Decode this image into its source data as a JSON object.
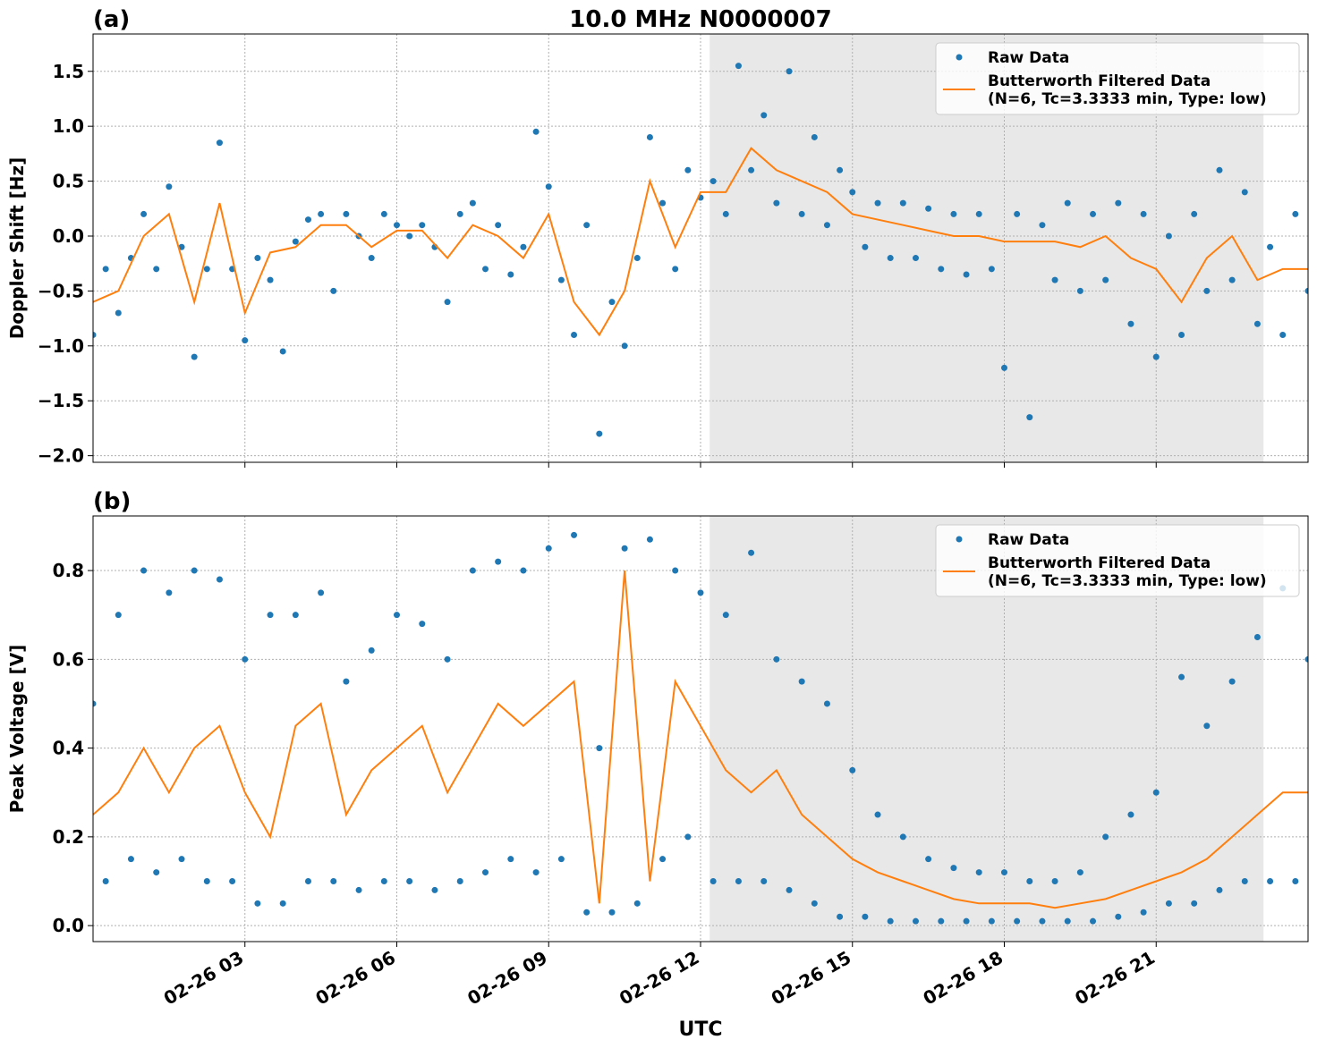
{
  "chart_data": [
    {
      "type": "line",
      "title": "10.0 MHz N0000007",
      "panel_label": "(a)",
      "y_label": "Doppler Shift [Hz]",
      "xlim": [
        0,
        24
      ],
      "xticks": [
        3,
        6,
        9,
        12,
        15,
        18,
        21
      ],
      "ylim": [
        -2.06,
        1.84
      ],
      "yticks": [
        -2.0,
        -1.5,
        -1.0,
        -0.5,
        0.0,
        0.5,
        1.0,
        1.5
      ],
      "ytick_labels": [
        "−2.0",
        "−1.5",
        "−1.0",
        "−0.5",
        "0.0",
        "0.5",
        "1.0",
        "1.5"
      ],
      "grid": true,
      "legend": "upper right",
      "shade": [
        12.18,
        23.12
      ],
      "shade_color": "#e8e8e8",
      "series": [
        {
          "name": "Raw Data",
          "color": "#1f77b4",
          "style": "markers",
          "x": [
            0,
            0.25,
            0.5,
            0.75,
            1,
            1.25,
            1.5,
            1.75,
            2,
            2.25,
            2.5,
            2.75,
            3,
            3.25,
            3.5,
            3.75,
            4,
            4.25,
            4.5,
            4.75,
            5,
            5.25,
            5.5,
            5.75,
            6,
            6.25,
            6.5,
            6.75,
            7,
            7.25,
            7.5,
            7.75,
            8,
            8.25,
            8.5,
            8.75,
            9,
            9.25,
            9.5,
            9.75,
            10,
            10.25,
            10.5,
            10.75,
            11,
            11.25,
            11.5,
            11.75,
            12,
            12.25,
            12.5,
            12.75,
            13,
            13.25,
            13.5,
            13.75,
            14,
            14.25,
            14.5,
            14.75,
            15,
            15.25,
            15.5,
            15.75,
            16,
            16.25,
            16.5,
            16.75,
            17,
            17.25,
            17.5,
            17.75,
            18,
            18.25,
            18.5,
            18.75,
            19,
            19.25,
            19.5,
            19.75,
            20,
            20.25,
            20.5,
            20.75,
            21,
            21.25,
            21.5,
            21.75,
            22,
            22.25,
            22.5,
            22.75,
            23,
            23.25,
            23.5,
            23.75,
            24
          ],
          "values": [
            -0.9,
            -0.3,
            -0.7,
            -0.2,
            0.2,
            -0.3,
            0.45,
            -0.1,
            -1.1,
            -0.3,
            0.85,
            -0.3,
            -0.95,
            -0.2,
            -0.4,
            -1.05,
            -0.05,
            0.15,
            0.2,
            -0.5,
            0.2,
            0.0,
            -0.2,
            0.2,
            0.1,
            0.0,
            0.1,
            -0.1,
            -0.6,
            0.2,
            0.3,
            -0.3,
            0.1,
            -0.35,
            -0.1,
            0.95,
            0.45,
            -0.4,
            -0.9,
            0.1,
            -1.8,
            -0.6,
            -1.0,
            -0.2,
            0.9,
            0.3,
            -0.3,
            0.6,
            0.35,
            0.5,
            0.2,
            1.55,
            0.6,
            1.1,
            0.3,
            1.5,
            0.2,
            0.9,
            0.1,
            0.6,
            0.4,
            -0.1,
            0.3,
            -0.2,
            0.3,
            -0.2,
            0.25,
            -0.3,
            0.2,
            -0.35,
            0.2,
            -0.3,
            -1.2,
            0.2,
            -1.65,
            0.1,
            -0.4,
            0.3,
            -0.5,
            0.2,
            -0.4,
            0.3,
            -0.8,
            0.2,
            -1.1,
            0.0,
            -0.9,
            0.2,
            -0.5,
            0.6,
            -0.4,
            0.4,
            -0.8,
            -0.1,
            -0.9,
            0.2,
            -0.5
          ]
        },
        {
          "name": "Butterworth Filtered Data\n(N=6, Tc=3.3333 min, Type: low)",
          "color": "#ff7f0e",
          "style": "line",
          "x": [
            0,
            0.5,
            1,
            1.5,
            2,
            2.5,
            3,
            3.5,
            4,
            4.5,
            5,
            5.5,
            6,
            6.5,
            7,
            7.5,
            8,
            8.5,
            9,
            9.5,
            10,
            10.5,
            11,
            11.5,
            12,
            12.5,
            13,
            13.5,
            14,
            14.5,
            15,
            15.5,
            16,
            16.5,
            17,
            17.5,
            18,
            18.5,
            19,
            19.5,
            20,
            20.5,
            21,
            21.5,
            22,
            22.5,
            23,
            23.5,
            24
          ],
          "values": [
            -0.6,
            -0.5,
            0.0,
            0.2,
            -0.6,
            0.3,
            -0.7,
            -0.15,
            -0.1,
            0.1,
            0.1,
            -0.1,
            0.05,
            0.05,
            -0.2,
            0.1,
            0.0,
            -0.2,
            0.2,
            -0.6,
            -0.9,
            -0.5,
            0.5,
            -0.1,
            0.4,
            0.4,
            0.8,
            0.6,
            0.5,
            0.4,
            0.2,
            0.15,
            0.1,
            0.05,
            0.0,
            0.0,
            -0.05,
            -0.05,
            -0.05,
            -0.1,
            0.0,
            -0.2,
            -0.3,
            -0.6,
            -0.2,
            0.0,
            -0.4,
            -0.3,
            -0.3
          ]
        }
      ]
    },
    {
      "type": "line",
      "panel_label": "(b)",
      "y_label": "Peak Voltage [V]",
      "x_label": "UTC",
      "xlim": [
        0,
        24
      ],
      "xticks": [
        {
          "value": 3,
          "label": "02-26 03"
        },
        {
          "value": 6,
          "label": "02-26 06"
        },
        {
          "value": 9,
          "label": "02-26 09"
        },
        {
          "value": 12,
          "label": "02-26 12"
        },
        {
          "value": 15,
          "label": "02-26 15"
        },
        {
          "value": 18,
          "label": "02-26 18"
        },
        {
          "value": 21,
          "label": "02-26 21"
        }
      ],
      "ylim": [
        -0.036,
        0.923
      ],
      "yticks": [
        {
          "value": 0,
          "label": "0.0"
        },
        0.2,
        0.4,
        0.6,
        0.8
      ],
      "grid": true,
      "legend": "upper right",
      "shade": [
        12.18,
        23.12
      ],
      "shade_color": "#e8e8e8",
      "series": [
        {
          "name": "Raw Data",
          "color": "#1f77b4",
          "style": "markers",
          "x": [
            0,
            0.25,
            0.5,
            0.75,
            1,
            1.25,
            1.5,
            1.75,
            2,
            2.25,
            2.5,
            2.75,
            3,
            3.25,
            3.5,
            3.75,
            4,
            4.25,
            4.5,
            4.75,
            5,
            5.25,
            5.5,
            5.75,
            6,
            6.25,
            6.5,
            6.75,
            7,
            7.25,
            7.5,
            7.75,
            8,
            8.25,
            8.5,
            8.75,
            9,
            9.25,
            9.5,
            9.75,
            10,
            10.25,
            10.5,
            10.75,
            11,
            11.25,
            11.5,
            11.75,
            12,
            12.25,
            12.5,
            12.75,
            13,
            13.25,
            13.5,
            13.75,
            14,
            14.25,
            14.5,
            14.75,
            15,
            15.25,
            15.5,
            15.75,
            16,
            16.25,
            16.5,
            16.75,
            17,
            17.25,
            17.5,
            17.75,
            18,
            18.25,
            18.5,
            18.75,
            19,
            19.25,
            19.5,
            19.75,
            20,
            20.25,
            20.5,
            20.75,
            21,
            21.25,
            21.5,
            21.75,
            22,
            22.25,
            22.5,
            22.75,
            23,
            23.25,
            23.5,
            23.75,
            24
          ],
          "values": [
            0.5,
            0.1,
            0.7,
            0.15,
            0.8,
            0.12,
            0.75,
            0.15,
            0.8,
            0.1,
            0.78,
            0.1,
            0.6,
            0.05,
            0.7,
            0.05,
            0.7,
            0.1,
            0.75,
            0.1,
            0.55,
            0.08,
            0.62,
            0.1,
            0.7,
            0.1,
            0.68,
            0.08,
            0.6,
            0.1,
            0.8,
            0.12,
            0.82,
            0.15,
            0.8,
            0.12,
            0.85,
            0.15,
            0.88,
            0.03,
            0.4,
            0.03,
            0.85,
            0.05,
            0.87,
            0.15,
            0.8,
            0.2,
            0.75,
            0.1,
            0.7,
            0.1,
            0.84,
            0.1,
            0.6,
            0.08,
            0.55,
            0.05,
            0.5,
            0.02,
            0.35,
            0.02,
            0.25,
            0.01,
            0.2,
            0.01,
            0.15,
            0.01,
            0.13,
            0.01,
            0.12,
            0.01,
            0.12,
            0.01,
            0.1,
            0.01,
            0.1,
            0.01,
            0.12,
            0.01,
            0.2,
            0.02,
            0.25,
            0.03,
            0.3,
            0.05,
            0.56,
            0.05,
            0.45,
            0.08,
            0.55,
            0.1,
            0.65,
            0.1,
            0.76,
            0.1,
            0.6
          ]
        },
        {
          "name": "Butterworth Filtered Data\n(N=6, Tc=3.3333 min, Type: low)",
          "color": "#ff7f0e",
          "style": "line",
          "x": [
            0,
            0.5,
            1,
            1.5,
            2,
            2.5,
            3,
            3.5,
            4,
            4.5,
            5,
            5.5,
            6,
            6.5,
            7,
            7.5,
            8,
            8.5,
            9,
            9.5,
            10,
            10.5,
            11,
            11.5,
            12,
            12.5,
            13,
            13.5,
            14,
            14.5,
            15,
            15.5,
            16,
            16.5,
            17,
            17.5,
            18,
            18.5,
            19,
            19.5,
            20,
            20.5,
            21,
            21.5,
            22,
            22.5,
            23,
            23.5,
            24
          ],
          "values": [
            0.25,
            0.3,
            0.4,
            0.3,
            0.4,
            0.45,
            0.3,
            0.2,
            0.45,
            0.5,
            0.25,
            0.35,
            0.4,
            0.45,
            0.3,
            0.4,
            0.5,
            0.45,
            0.5,
            0.55,
            0.05,
            0.8,
            0.1,
            0.55,
            0.45,
            0.35,
            0.3,
            0.35,
            0.25,
            0.2,
            0.15,
            0.12,
            0.1,
            0.08,
            0.06,
            0.05,
            0.05,
            0.05,
            0.04,
            0.05,
            0.06,
            0.08,
            0.1,
            0.12,
            0.15,
            0.2,
            0.25,
            0.3,
            0.3
          ]
        }
      ]
    }
  ]
}
